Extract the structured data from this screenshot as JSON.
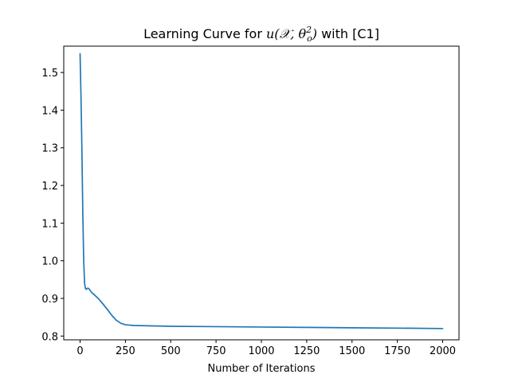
{
  "chart_data": {
    "type": "line",
    "title_prefix": "Learning Curve for ",
    "title_math": "u(𝒳, θ",
    "title_math_sup": "2",
    "title_math_sub": "o",
    "title_math_close": ")",
    "title_suffix": " with [C1]",
    "xlabel": "Number of Iterations",
    "ylabel": "",
    "xlim": [
      -90,
      2090
    ],
    "ylim": [
      0.79,
      1.57
    ],
    "x_ticks": [
      0,
      250,
      500,
      750,
      1000,
      1250,
      1500,
      1750,
      2000
    ],
    "y_ticks": [
      0.8,
      0.9,
      1.0,
      1.1,
      1.2,
      1.3,
      1.4,
      1.5
    ],
    "y_tick_labels": [
      "0.8",
      "0.9",
      "1.0",
      "1.1",
      "1.2",
      "1.3",
      "1.4",
      "1.5"
    ],
    "grid": false,
    "series": [
      {
        "color": "#1f77b4",
        "x": [
          0,
          5,
          10,
          15,
          20,
          25,
          30,
          35,
          40,
          45,
          50,
          60,
          70,
          80,
          100,
          125,
          150,
          175,
          200,
          225,
          250,
          275,
          300,
          350,
          400,
          500,
          750,
          1000,
          1250,
          1500,
          1750,
          2000
        ],
        "y": [
          1.55,
          1.44,
          1.3,
          1.13,
          1.0,
          0.94,
          0.926,
          0.924,
          0.927,
          0.927,
          0.925,
          0.918,
          0.913,
          0.909,
          0.9,
          0.886,
          0.871,
          0.855,
          0.842,
          0.834,
          0.83,
          0.829,
          0.828,
          0.8275,
          0.827,
          0.826,
          0.825,
          0.824,
          0.823,
          0.822,
          0.821,
          0.82
        ]
      }
    ]
  }
}
